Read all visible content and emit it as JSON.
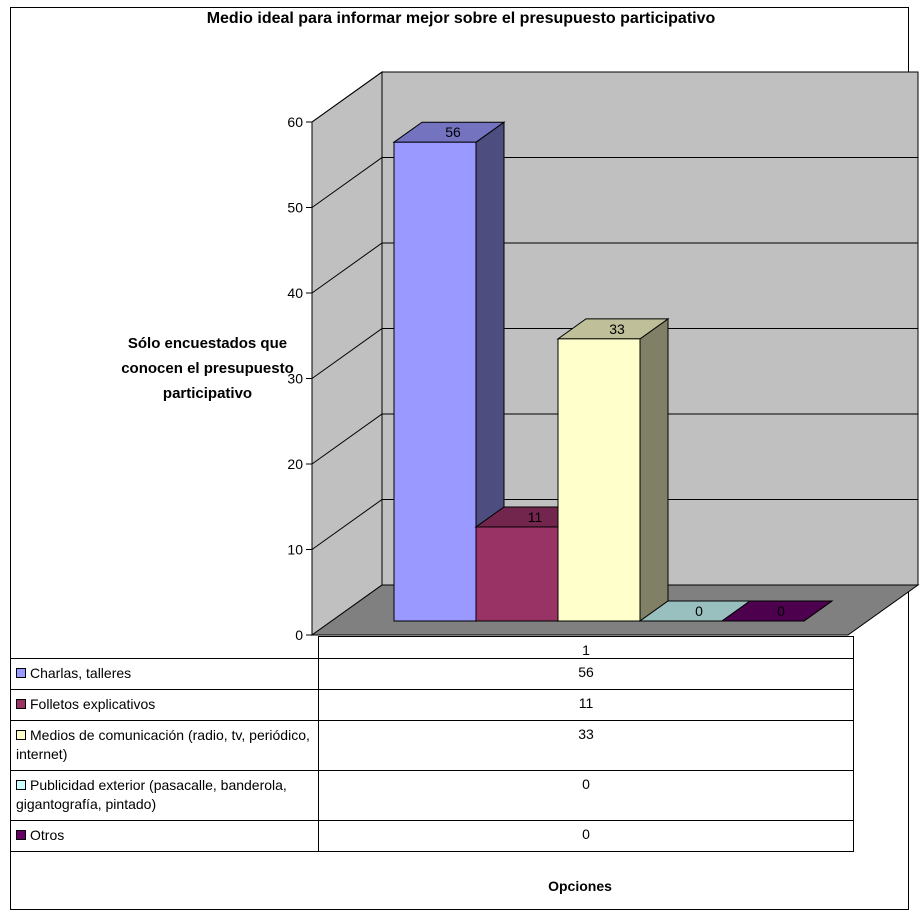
{
  "chart_data": {
    "type": "bar",
    "title": "Medio ideal para informar mejor sobre el presupuesto participativo",
    "ylabel": "Sólo encuestados que conocen el presupuesto participativo",
    "xlabel": "Opciones",
    "ylim": [
      0,
      60
    ],
    "yticks": [
      0,
      10,
      20,
      30,
      40,
      50,
      60
    ],
    "categories": [
      "1"
    ],
    "series": [
      {
        "name": "Charlas, talleres",
        "values": [
          56
        ],
        "color": "#9999ff"
      },
      {
        "name": "Folletos explicativos",
        "values": [
          11
        ],
        "color": "#993366"
      },
      {
        "name": "Medios de comunicación (radio, tv, periódico, internet)",
        "values": [
          33
        ],
        "color": "#ffffcc"
      },
      {
        "name": "Publicidad exterior (pasacalle, banderola, gigantografía, pintado)",
        "values": [
          0
        ],
        "color": "#ccffff"
      },
      {
        "name": "Otros",
        "values": [
          0
        ],
        "color": "#660066"
      }
    ],
    "grid": true,
    "legend": "data table below chart",
    "colors": {
      "wall": "#c0c0c0",
      "floor": "#808080"
    }
  }
}
